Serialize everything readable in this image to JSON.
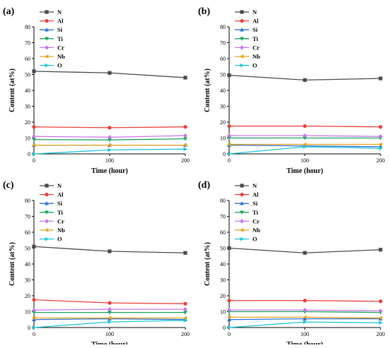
{
  "chart_data": [
    {
      "type": "line",
      "panel_label": "(a)",
      "xlabel": "Time (hour)",
      "ylabel": "Content (at%)",
      "xlim": [
        0,
        200
      ],
      "ylim": [
        0,
        80
      ],
      "x": [
        0,
        100,
        200
      ],
      "x_ticks": [
        "0",
        "100",
        "200"
      ],
      "y_ticks": [
        "0",
        "10",
        "20",
        "30",
        "40",
        "50",
        "60",
        "70",
        "80"
      ],
      "legend_position": "top-left",
      "series": [
        {
          "name": "N",
          "color": "#4a4a4a",
          "marker": "square",
          "values": [
            52.0,
            51.0,
            48.0
          ]
        },
        {
          "name": "Al",
          "color": "#e8413a",
          "marker": "circle",
          "values": [
            17.0,
            16.5,
            17.0
          ]
        },
        {
          "name": "Si",
          "color": "#2a6fd6",
          "marker": "triangle-up",
          "values": [
            5.5,
            5.5,
            5.5
          ]
        },
        {
          "name": "Ti",
          "color": "#18a35c",
          "marker": "triangle-down",
          "values": [
            9.0,
            8.8,
            9.5
          ]
        },
        {
          "name": "Cr",
          "color": "#c775e8",
          "marker": "diamond",
          "values": [
            11.0,
            10.5,
            11.5
          ]
        },
        {
          "name": "Nb",
          "color": "#e8a21a",
          "marker": "triangle-left",
          "values": [
            5.5,
            5.5,
            5.5
          ]
        },
        {
          "name": "O",
          "color": "#19c6d9",
          "marker": "triangle-right",
          "values": [
            0.0,
            2.5,
            3.0
          ]
        }
      ]
    },
    {
      "type": "line",
      "panel_label": "(b)",
      "xlabel": "Time (hour)",
      "ylabel": "Content (at%)",
      "xlim": [
        0,
        200
      ],
      "ylim": [
        0,
        80
      ],
      "x": [
        0,
        100,
        200
      ],
      "x_ticks": [
        "0",
        "100",
        "200"
      ],
      "y_ticks": [
        "0",
        "10",
        "20",
        "30",
        "40",
        "50",
        "60",
        "70",
        "80"
      ],
      "legend_position": "top-left",
      "series": [
        {
          "name": "N",
          "color": "#4a4a4a",
          "marker": "square",
          "values": [
            49.5,
            46.5,
            47.5
          ]
        },
        {
          "name": "Al",
          "color": "#e8413a",
          "marker": "circle",
          "values": [
            17.5,
            17.5,
            17.0
          ]
        },
        {
          "name": "Si",
          "color": "#2a6fd6",
          "marker": "triangle-up",
          "values": [
            5.5,
            5.0,
            4.5
          ]
        },
        {
          "name": "Ti",
          "color": "#18a35c",
          "marker": "triangle-down",
          "values": [
            10.0,
            10.0,
            10.0
          ]
        },
        {
          "name": "Cr",
          "color": "#c775e8",
          "marker": "diamond",
          "values": [
            11.5,
            11.5,
            11.0
          ]
        },
        {
          "name": "Nb",
          "color": "#e8a21a",
          "marker": "triangle-left",
          "values": [
            6.0,
            6.0,
            6.0
          ]
        },
        {
          "name": "O",
          "color": "#19c6d9",
          "marker": "triangle-right",
          "values": [
            0.0,
            4.5,
            3.5
          ]
        }
      ]
    },
    {
      "type": "line",
      "panel_label": "(c)",
      "xlabel": "Time (hour)",
      "ylabel": "Content (at%)",
      "xlim": [
        0,
        200
      ],
      "ylim": [
        0,
        80
      ],
      "x": [
        0,
        100,
        200
      ],
      "x_ticks": [
        "0",
        "100",
        "200"
      ],
      "y_ticks": [
        "0",
        "10",
        "20",
        "30",
        "40",
        "50",
        "60",
        "70",
        "80"
      ],
      "legend_position": "top-left",
      "series": [
        {
          "name": "N",
          "color": "#4a4a4a",
          "marker": "square",
          "values": [
            51.0,
            48.0,
            47.0
          ]
        },
        {
          "name": "Al",
          "color": "#e8413a",
          "marker": "circle",
          "values": [
            17.5,
            15.5,
            15.0
          ]
        },
        {
          "name": "Si",
          "color": "#2a6fd6",
          "marker": "triangle-up",
          "values": [
            5.0,
            5.5,
            5.0
          ]
        },
        {
          "name": "Ti",
          "color": "#18a35c",
          "marker": "triangle-down",
          "values": [
            9.5,
            9.5,
            9.5
          ]
        },
        {
          "name": "Cr",
          "color": "#c775e8",
          "marker": "diamond",
          "values": [
            11.0,
            11.5,
            11.5
          ]
        },
        {
          "name": "Nb",
          "color": "#e8a21a",
          "marker": "triangle-left",
          "values": [
            6.0,
            6.0,
            6.0
          ]
        },
        {
          "name": "O",
          "color": "#19c6d9",
          "marker": "triangle-right",
          "values": [
            0.0,
            3.5,
            4.5
          ]
        }
      ]
    },
    {
      "type": "line",
      "panel_label": "(d)",
      "xlabel": "Time (hour)",
      "ylabel": "Content (at%)",
      "xlim": [
        0,
        200
      ],
      "ylim": [
        0,
        80
      ],
      "x": [
        0,
        100,
        200
      ],
      "x_ticks": [
        "0",
        "100",
        "200"
      ],
      "y_ticks": [
        "0",
        "10",
        "20",
        "30",
        "40",
        "50",
        "60",
        "70",
        "80"
      ],
      "legend_position": "top-left",
      "series": [
        {
          "name": "N",
          "color": "#4a4a4a",
          "marker": "square",
          "values": [
            50.0,
            47.0,
            49.0
          ]
        },
        {
          "name": "Al",
          "color": "#e8413a",
          "marker": "circle",
          "values": [
            17.0,
            17.0,
            16.5
          ]
        },
        {
          "name": "Si",
          "color": "#2a6fd6",
          "marker": "triangle-up",
          "values": [
            5.0,
            5.5,
            5.5
          ]
        },
        {
          "name": "Ti",
          "color": "#18a35c",
          "marker": "triangle-down",
          "values": [
            10.0,
            10.0,
            9.5
          ]
        },
        {
          "name": "Cr",
          "color": "#c775e8",
          "marker": "diamond",
          "values": [
            11.0,
            11.0,
            10.5
          ]
        },
        {
          "name": "Nb",
          "color": "#e8a21a",
          "marker": "triangle-left",
          "values": [
            6.5,
            6.5,
            6.0
          ]
        },
        {
          "name": "O",
          "color": "#19c6d9",
          "marker": "triangle-right",
          "values": [
            0.0,
            3.5,
            3.0
          ]
        }
      ]
    }
  ]
}
